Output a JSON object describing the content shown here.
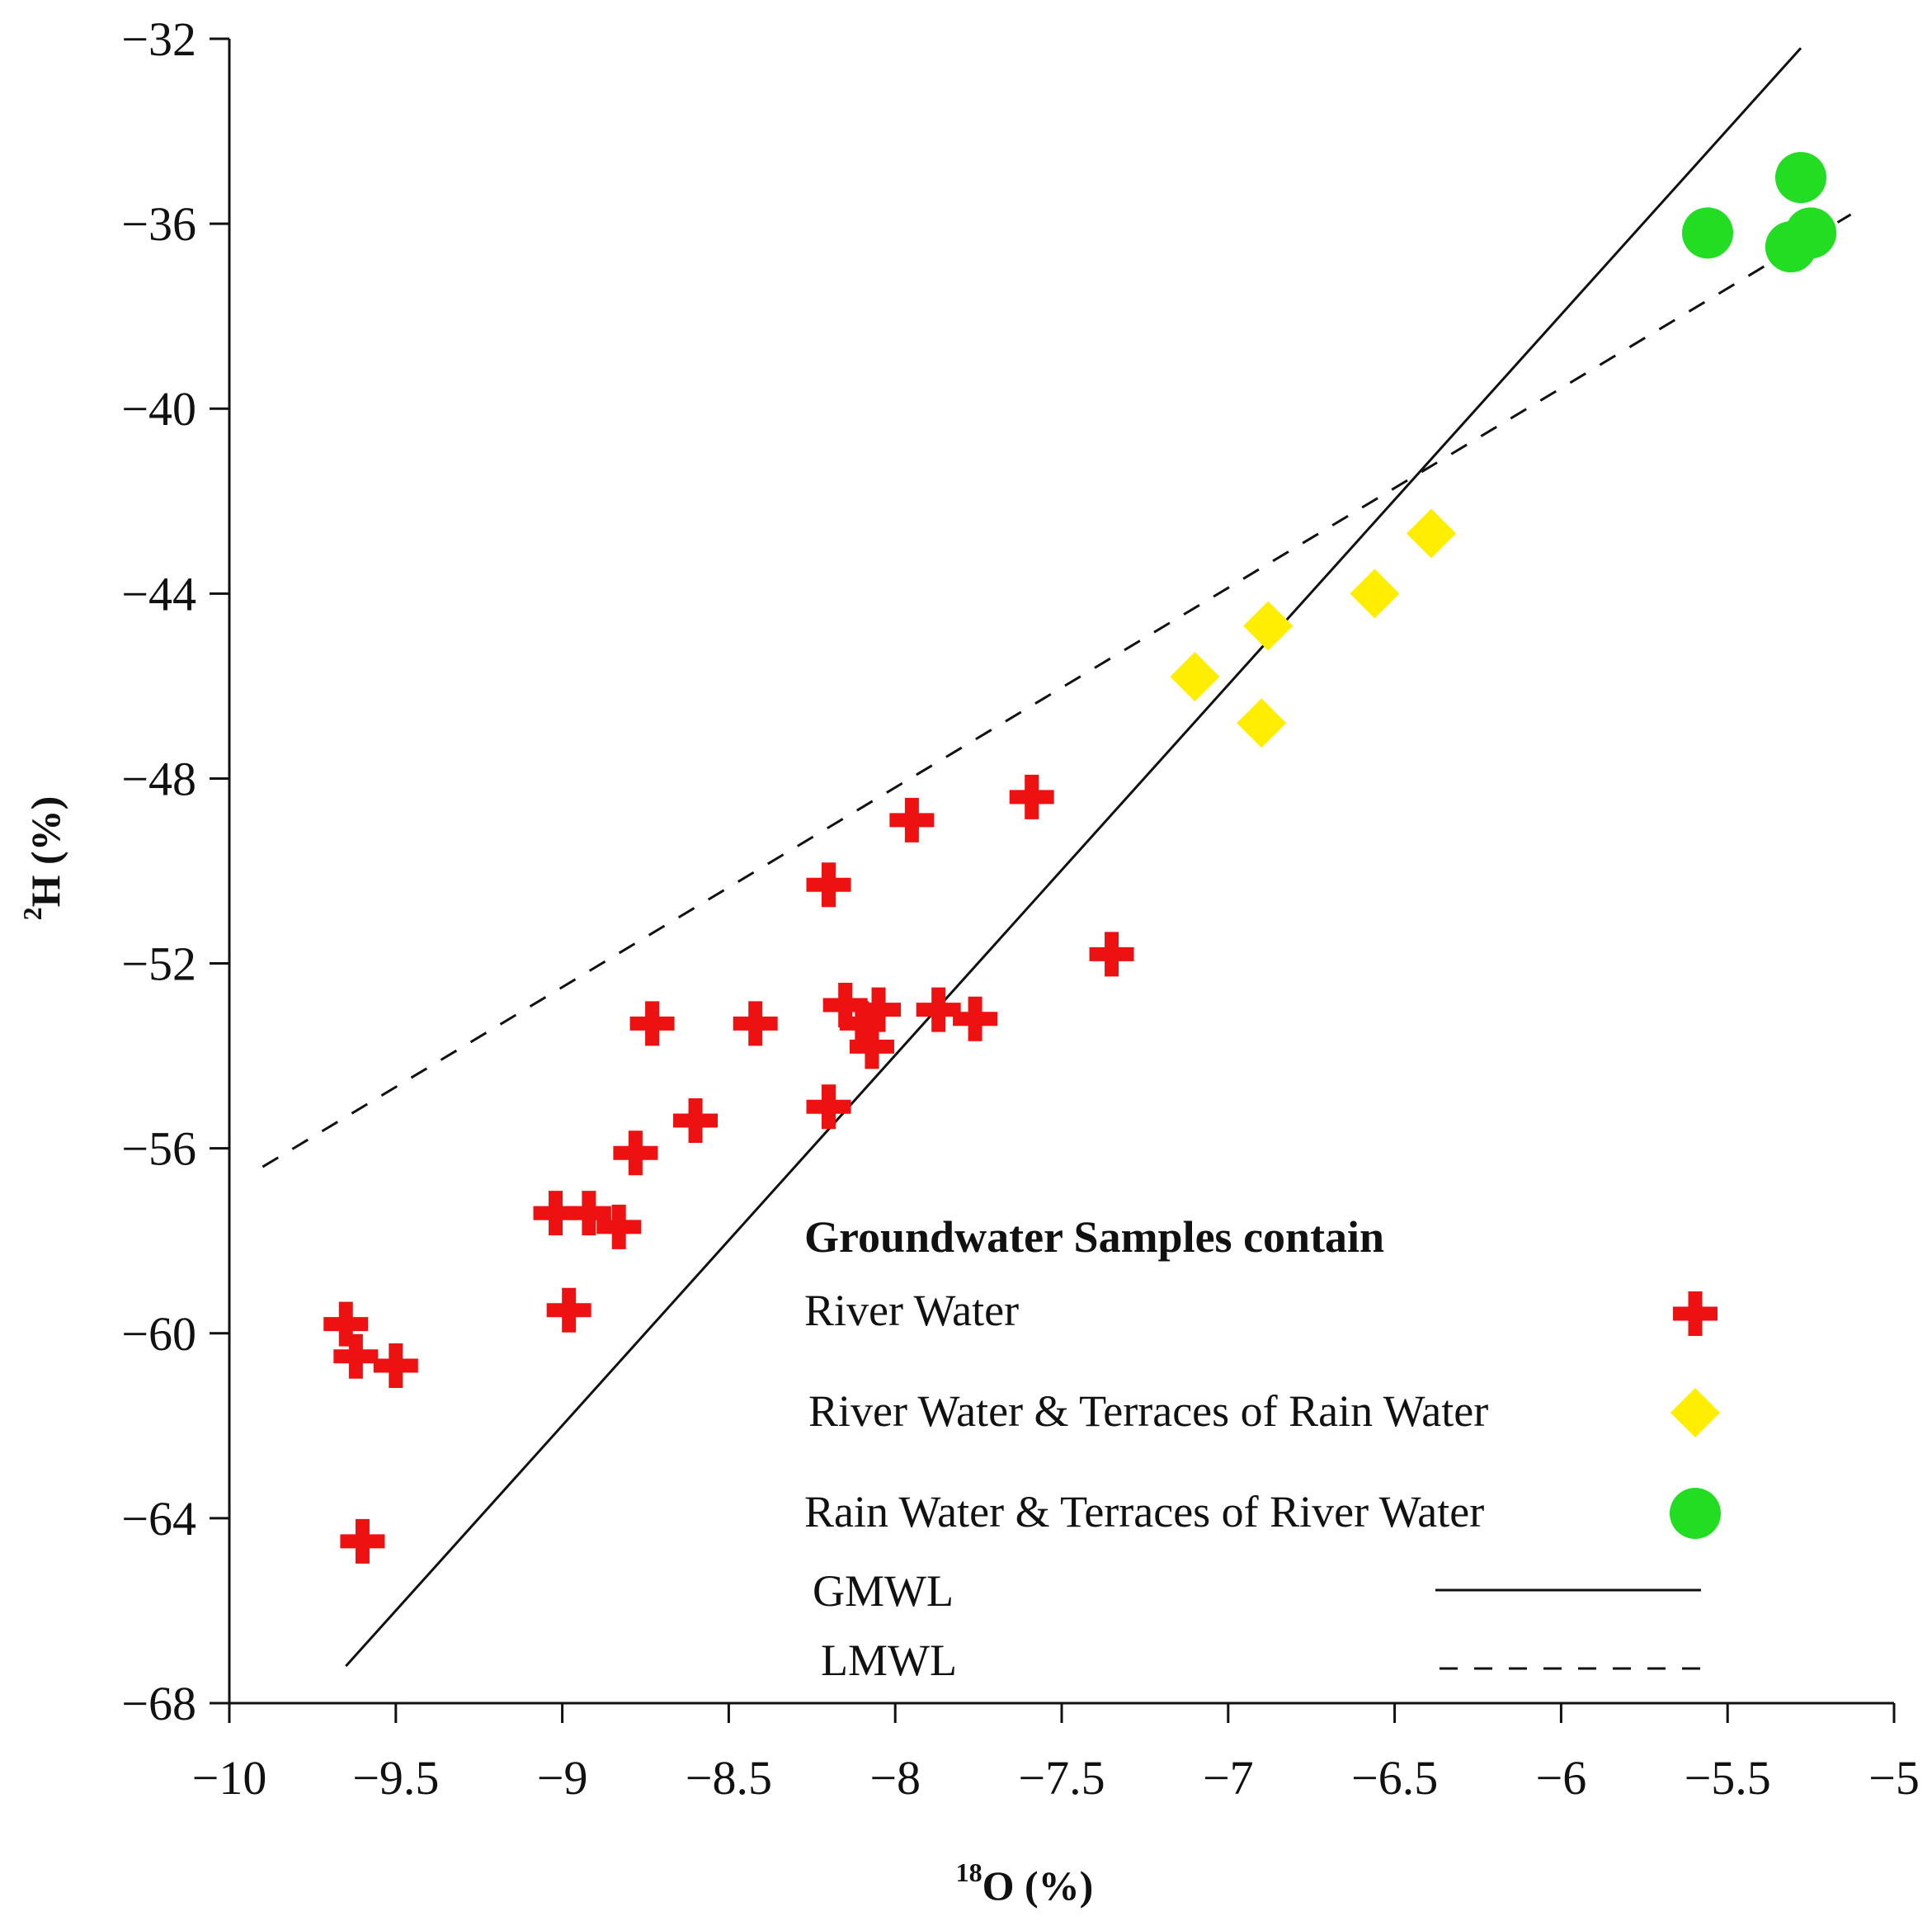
{
  "chart_data": {
    "type": "scatter",
    "title": "",
    "xlabel_sup": "18",
    "xlabel_main": "O (%)",
    "ylabel_sup": "2",
    "ylabel_main": "H (%)",
    "xlim": [
      -10,
      -5
    ],
    "ylim": [
      -68,
      -32
    ],
    "xticks": [
      -10,
      -9.5,
      -9,
      -8.5,
      -8,
      -7.5,
      -7,
      -6.5,
      -6,
      -5.5,
      -5
    ],
    "xtick_labels": [
      "−10",
      "−9.5",
      "−9",
      "−8.5",
      "−8",
      "−7.5",
      "−7",
      "−6.5",
      "−6",
      "−5.5",
      "−5"
    ],
    "yticks": [
      -32,
      -36,
      -40,
      -44,
      -48,
      -52,
      -56,
      -60,
      -64,
      -68
    ],
    "ytick_labels": [
      "−32",
      "−36",
      "−40",
      "−44",
      "−48",
      "−52",
      "−56",
      "−60",
      "−64",
      "−68"
    ],
    "grid": false,
    "series": [
      {
        "name": "River Water",
        "marker": "plus",
        "color": "#ee1111",
        "points": [
          {
            "x": -9.65,
            "y": -59.8
          },
          {
            "x": -9.62,
            "y": -60.5
          },
          {
            "x": -9.5,
            "y": -60.7
          },
          {
            "x": -9.6,
            "y": -64.5
          },
          {
            "x": -9.02,
            "y": -57.4
          },
          {
            "x": -8.92,
            "y": -57.4
          },
          {
            "x": -8.83,
            "y": -57.7
          },
          {
            "x": -8.78,
            "y": -56.1
          },
          {
            "x": -8.73,
            "y": -53.3
          },
          {
            "x": -8.98,
            "y": -59.5
          },
          {
            "x": -8.6,
            "y": -55.4
          },
          {
            "x": -8.42,
            "y": -53.3
          },
          {
            "x": -8.2,
            "y": -55.1
          },
          {
            "x": -8.2,
            "y": -50.3
          },
          {
            "x": -8.15,
            "y": -52.9
          },
          {
            "x": -8.1,
            "y": -53.3
          },
          {
            "x": -8.07,
            "y": -53.8
          },
          {
            "x": -8.05,
            "y": -53.0
          },
          {
            "x": -7.95,
            "y": -48.9
          },
          {
            "x": -7.87,
            "y": -53.0
          },
          {
            "x": -7.76,
            "y": -53.2
          },
          {
            "x": -7.59,
            "y": -48.4
          },
          {
            "x": -7.35,
            "y": -51.8
          }
        ]
      },
      {
        "name": "River Water & Terraces of Rain Water",
        "marker": "diamond",
        "color": "#ffee00",
        "points": [
          {
            "x": -7.1,
            "y": -45.8
          },
          {
            "x": -6.88,
            "y": -44.7
          },
          {
            "x": -6.9,
            "y": -46.8
          },
          {
            "x": -6.56,
            "y": -44.0
          },
          {
            "x": -6.39,
            "y": -42.7
          }
        ]
      },
      {
        "name": "Rain Water & Terraces of River Water",
        "marker": "circle",
        "color": "#22dd22",
        "points": [
          {
            "x": -5.56,
            "y": -36.2
          },
          {
            "x": -5.28,
            "y": -35.0
          },
          {
            "x": -5.31,
            "y": -36.5
          },
          {
            "x": -5.25,
            "y": -36.2
          }
        ]
      }
    ],
    "lines": [
      {
        "name": "GMWL",
        "style": "solid",
        "color": "#111111",
        "x": [
          -9.65,
          -5.28
        ],
        "y": [
          -67.2,
          -32.2
        ]
      },
      {
        "name": "LMWL",
        "style": "dashed",
        "color": "#111111",
        "x": [
          -9.9,
          -5.13
        ],
        "y": [
          -56.4,
          -35.8
        ]
      }
    ],
    "legend": {
      "title": "Groundwater Samples contain",
      "position": "bottom-right",
      "entries": [
        {
          "label": "River Water",
          "marker": "plus",
          "color": "#ee1111"
        },
        {
          "label": "River Water & Terraces of Rain Water",
          "marker": "diamond",
          "color": "#ffee00"
        },
        {
          "label": "Rain Water & Terraces of River Water",
          "marker": "circle",
          "color": "#22dd22"
        },
        {
          "label": "GMWL",
          "marker": "line-solid",
          "color": "#111111"
        },
        {
          "label": "LMWL",
          "marker": "line-dashed",
          "color": "#111111"
        }
      ]
    }
  }
}
